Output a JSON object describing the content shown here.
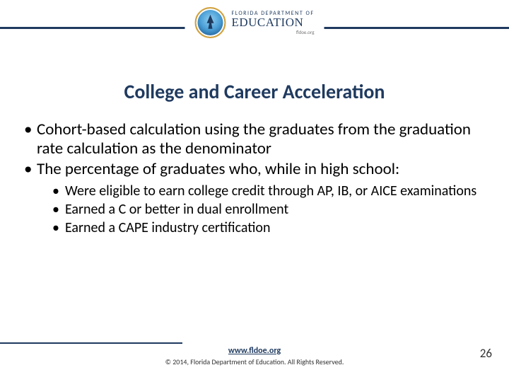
{
  "logo": {
    "line1": "FLORIDA DEPARTMENT OF",
    "line2": "EDUCATION",
    "tagline": "fldoe.org"
  },
  "title": "College and Career Acceleration",
  "bullets": {
    "b1": "Cohort-based calculation using the graduates from the graduation rate calculation as the denominator",
    "b2": "The percentage of graduates who, while in high school:",
    "sub": {
      "s1": "Were eligible to earn college credit through AP, IB, or AICE examinations",
      "s2": "Earned a C or better in dual enrollment",
      "s3": "Earned a CAPE industry certification"
    }
  },
  "footer": {
    "link": "www.fldoe.org",
    "copyright": "© 2014, Florida Department of Education. All Rights Reserved."
  },
  "page_number": "26",
  "colors": {
    "rule": "#1f3a5f",
    "title": "#1f3a5f",
    "text": "#000000",
    "background": "#ffffff"
  }
}
